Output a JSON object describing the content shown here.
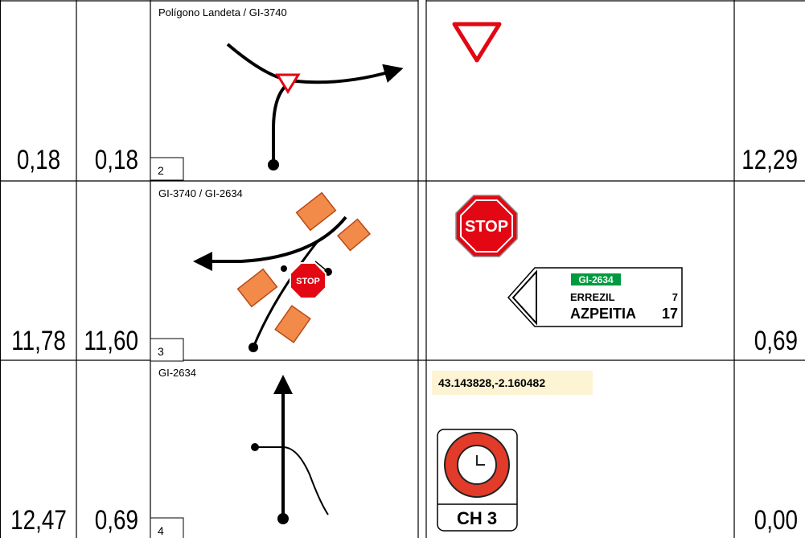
{
  "rows": [
    {
      "total": "0,18",
      "partial": "0,18",
      "number": "2",
      "road": "Polígono Landeta / GI-3740",
      "distance_to_end": "12,29"
    },
    {
      "total": "11,78",
      "partial": "11,60",
      "number": "3",
      "road": "GI-3740 / GI-2634",
      "distance_to_end": "0,69"
    },
    {
      "total": "12,47",
      "partial": "0,69",
      "number": "4",
      "road": "GI-2634",
      "distance_to_end": "0,00"
    }
  ],
  "signs": {
    "stop": "STOP",
    "route_code": "GI-2634",
    "destinations": [
      {
        "name": "ERREZIL",
        "km": "7"
      },
      {
        "name": "AZPEITIA",
        "km": "17"
      }
    ],
    "coordinates": "43.143828,-2.160482",
    "checkpoint": "CH 3"
  }
}
